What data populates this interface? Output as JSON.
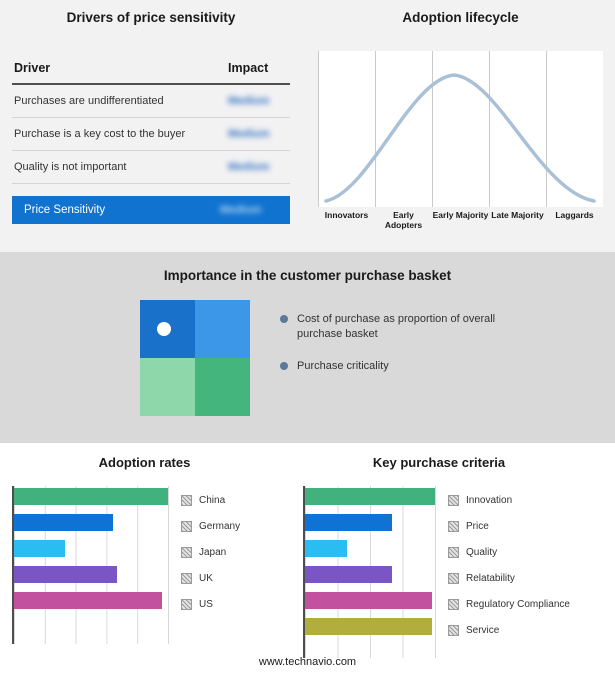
{
  "sections": {
    "drivers": {
      "title": "Drivers of price sensitivity",
      "table": {
        "headers": {
          "driver": "Driver",
          "impact": "Impact"
        },
        "rows": [
          {
            "driver": "Purchases are undifferentiated",
            "impact": "Medium"
          },
          {
            "driver": "Purchase is a key cost to the buyer",
            "impact": "Medium"
          },
          {
            "driver": "Quality is not important",
            "impact": "Medium"
          }
        ]
      },
      "summary": {
        "label": "Price Sensitivity",
        "impact": "Medium"
      },
      "impact_values_blurred": true,
      "highlight_color": "#1173d0"
    },
    "basket": {
      "title": "Importance in the customer purchase basket",
      "legend": [
        "Cost of purchase as proportion of overall purchase basket",
        "Purchase criticality"
      ],
      "quadrant_colors": {
        "top_left": "#1a71c9",
        "top_right": "#3d97e8",
        "bottom_left": "#8ed7ab",
        "bottom_right": "#44b57c"
      },
      "bullet_color": "#5b7a99"
    }
  },
  "chart_data": [
    {
      "id": "adoption-lifecycle",
      "type": "line",
      "title": "Adoption lifecycle",
      "categories": [
        "Innovators",
        "Early Adopters",
        "Early Majority",
        "Late Majority",
        "Laggards"
      ],
      "values": [
        8,
        52,
        100,
        52,
        8
      ],
      "xlabel": "",
      "ylabel": "",
      "line_color": "#a9c0d6",
      "grid": "vertical section dividers only",
      "notes": "bell-shaped adoption curve; no numeric axes shown"
    },
    {
      "id": "adoption-rates",
      "type": "bar",
      "title": "Adoption rates",
      "orientation": "horizontal",
      "categories": [
        "China",
        "Germany",
        "Japan",
        "UK",
        "US"
      ],
      "values": [
        100,
        64,
        33,
        67,
        96
      ],
      "xmax": 100,
      "colors": [
        "#41b27d",
        "#0f72d4",
        "#29bdf2",
        "#7a55c6",
        "#c2519f"
      ],
      "grid": "vertical gridlines, 5 intervals",
      "legend_position": "right",
      "notes": "relative scale; no numeric axis labels shown"
    },
    {
      "id": "key-purchase-criteria",
      "type": "bar",
      "title": "Key purchase criteria",
      "orientation": "horizontal",
      "categories": [
        "Innovation",
        "Price",
        "Quality",
        "Relatability",
        "Regulatory Compliance",
        "Service"
      ],
      "values": [
        100,
        67,
        32,
        67,
        98,
        98
      ],
      "xmax": 100,
      "colors": [
        "#41b27d",
        "#0f72d4",
        "#29bdf2",
        "#7a55c6",
        "#c2519f",
        "#b2ad3f"
      ],
      "grid": "vertical gridlines, 4 intervals",
      "legend_position": "right",
      "notes": "relative scale; no numeric axis labels shown"
    }
  ],
  "footer": "www.technavio.com"
}
